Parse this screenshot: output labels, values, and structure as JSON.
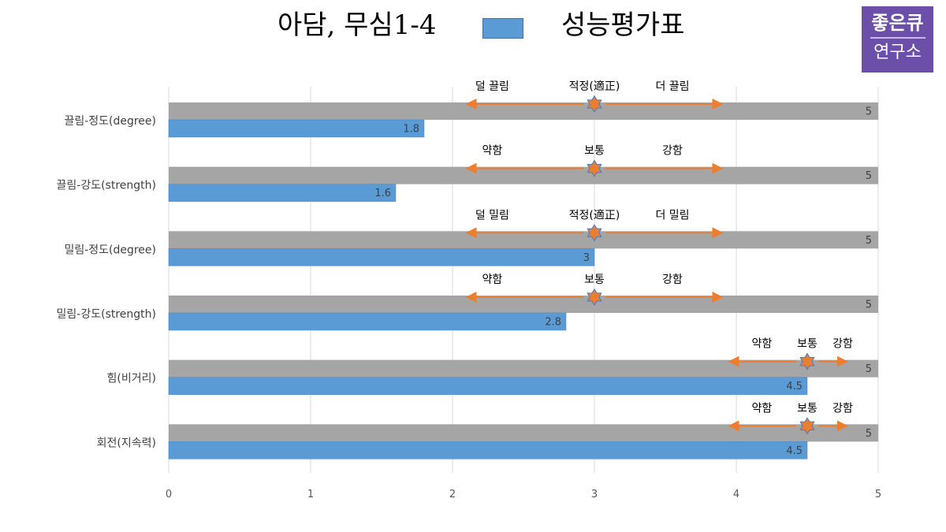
{
  "header": {
    "title": "아담, 무심1-4",
    "legend_label": "성능평가표",
    "logo_line1": "좋은큐",
    "logo_line2": "연구소"
  },
  "colors": {
    "series_bar": "#5b9bd5",
    "max_bar": "#a5a5a5",
    "arrow": "#ed7d31",
    "star_fill": "#ed7d31",
    "star_stroke": "#5b7fb5",
    "grid": "#d9d9d9",
    "logo_bg": "#6b4fa8"
  },
  "chart_data": {
    "type": "bar",
    "orientation": "horizontal",
    "title": "아담, 무심1-4",
    "categories": [
      "끌림-정도(degree)",
      "끌림-강도(strength)",
      "밀림-정도(degree)",
      "밀림-강도(strength)",
      "힘(비거리)",
      "회전(지속력)"
    ],
    "series": [
      {
        "name": "성능평가표",
        "values": [
          1.8,
          1.6,
          3,
          2.8,
          4.5,
          4.5
        ],
        "labels": [
          "1.8",
          "1.6",
          "3",
          "2.8",
          "4.5",
          "4.5"
        ]
      },
      {
        "values": [
          5,
          5,
          5,
          5,
          5,
          5
        ],
        "labels": [
          "5",
          "5",
          "5",
          "5",
          "5",
          "5"
        ]
      }
    ],
    "xlim": [
      0,
      5
    ],
    "x_ticks": [
      "0",
      "1",
      "2",
      "3",
      "4",
      "5"
    ],
    "grid": true,
    "legend_position": "top",
    "annotations": [
      {
        "left": "덜 끌림",
        "center": "적정(適正)",
        "right": "더 끌림",
        "marker": 3,
        "range": [
          2.1,
          3.9
        ]
      },
      {
        "left": "약함",
        "center": "보통",
        "right": "강함",
        "marker": 3,
        "range": [
          2.1,
          3.9
        ]
      },
      {
        "left": "덜 밀림",
        "center": "적정(適正)",
        "right": "더 밀림",
        "marker": 3,
        "range": [
          2.1,
          3.9
        ]
      },
      {
        "left": "약함",
        "center": "보통",
        "right": "강함",
        "marker": 3,
        "range": [
          2.1,
          3.9
        ]
      },
      {
        "left": "약함",
        "center": "보통",
        "right": "강함",
        "marker": 4.5,
        "range": [
          3.95,
          4.78
        ]
      },
      {
        "left": "약함",
        "center": "보통",
        "right": "강함",
        "marker": 4.5,
        "range": [
          3.95,
          4.78
        ]
      }
    ]
  }
}
